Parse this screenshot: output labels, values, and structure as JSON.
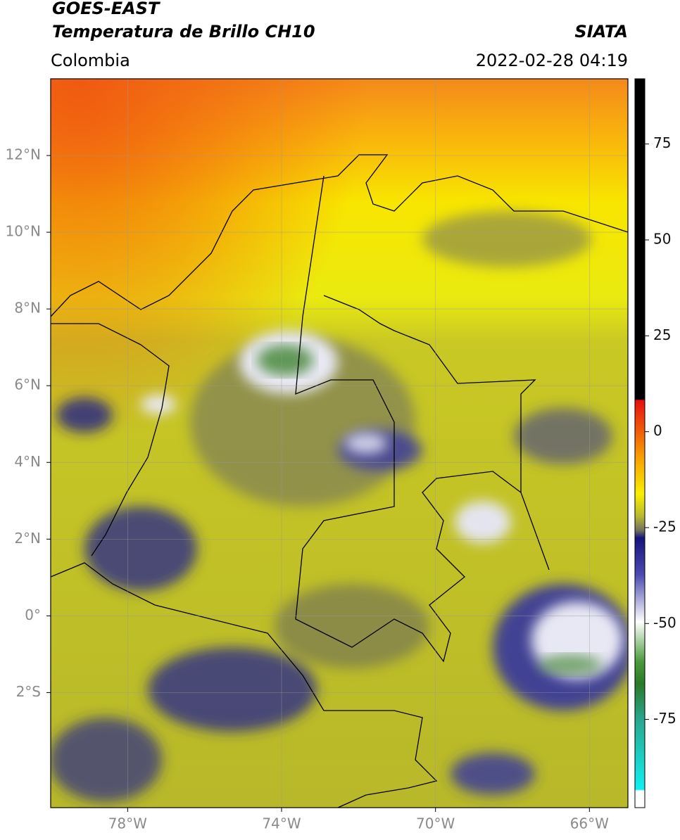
{
  "header": {
    "title": "GOES-EAST",
    "subtitle": "Temperatura de Brillo CH10",
    "source": "SIATA",
    "region": "Colombia",
    "datetime": "2022-02-28 04:19"
  },
  "map": {
    "xlim": [
      -80,
      -65
    ],
    "ylim": [
      -5,
      14
    ],
    "xticks": [
      {
        "value": -78,
        "label": "78°W"
      },
      {
        "value": -74,
        "label": "74°W"
      },
      {
        "value": -70,
        "label": "70°W"
      },
      {
        "value": -66,
        "label": "66°W"
      }
    ],
    "yticks": [
      {
        "value": 12,
        "label": "12°N"
      },
      {
        "value": 10,
        "label": "10°N"
      },
      {
        "value": 8,
        "label": "8°N"
      },
      {
        "value": 6,
        "label": "6°N"
      },
      {
        "value": 4,
        "label": "4°N"
      },
      {
        "value": 2,
        "label": "2°N"
      },
      {
        "value": 0,
        "label": "0°"
      },
      {
        "value": -2,
        "label": "2°S"
      }
    ],
    "grid": true
  },
  "colorbar": {
    "lim": [
      -98,
      92
    ],
    "ticks": [
      75,
      50,
      25,
      0,
      -25,
      -50,
      -75
    ]
  }
}
